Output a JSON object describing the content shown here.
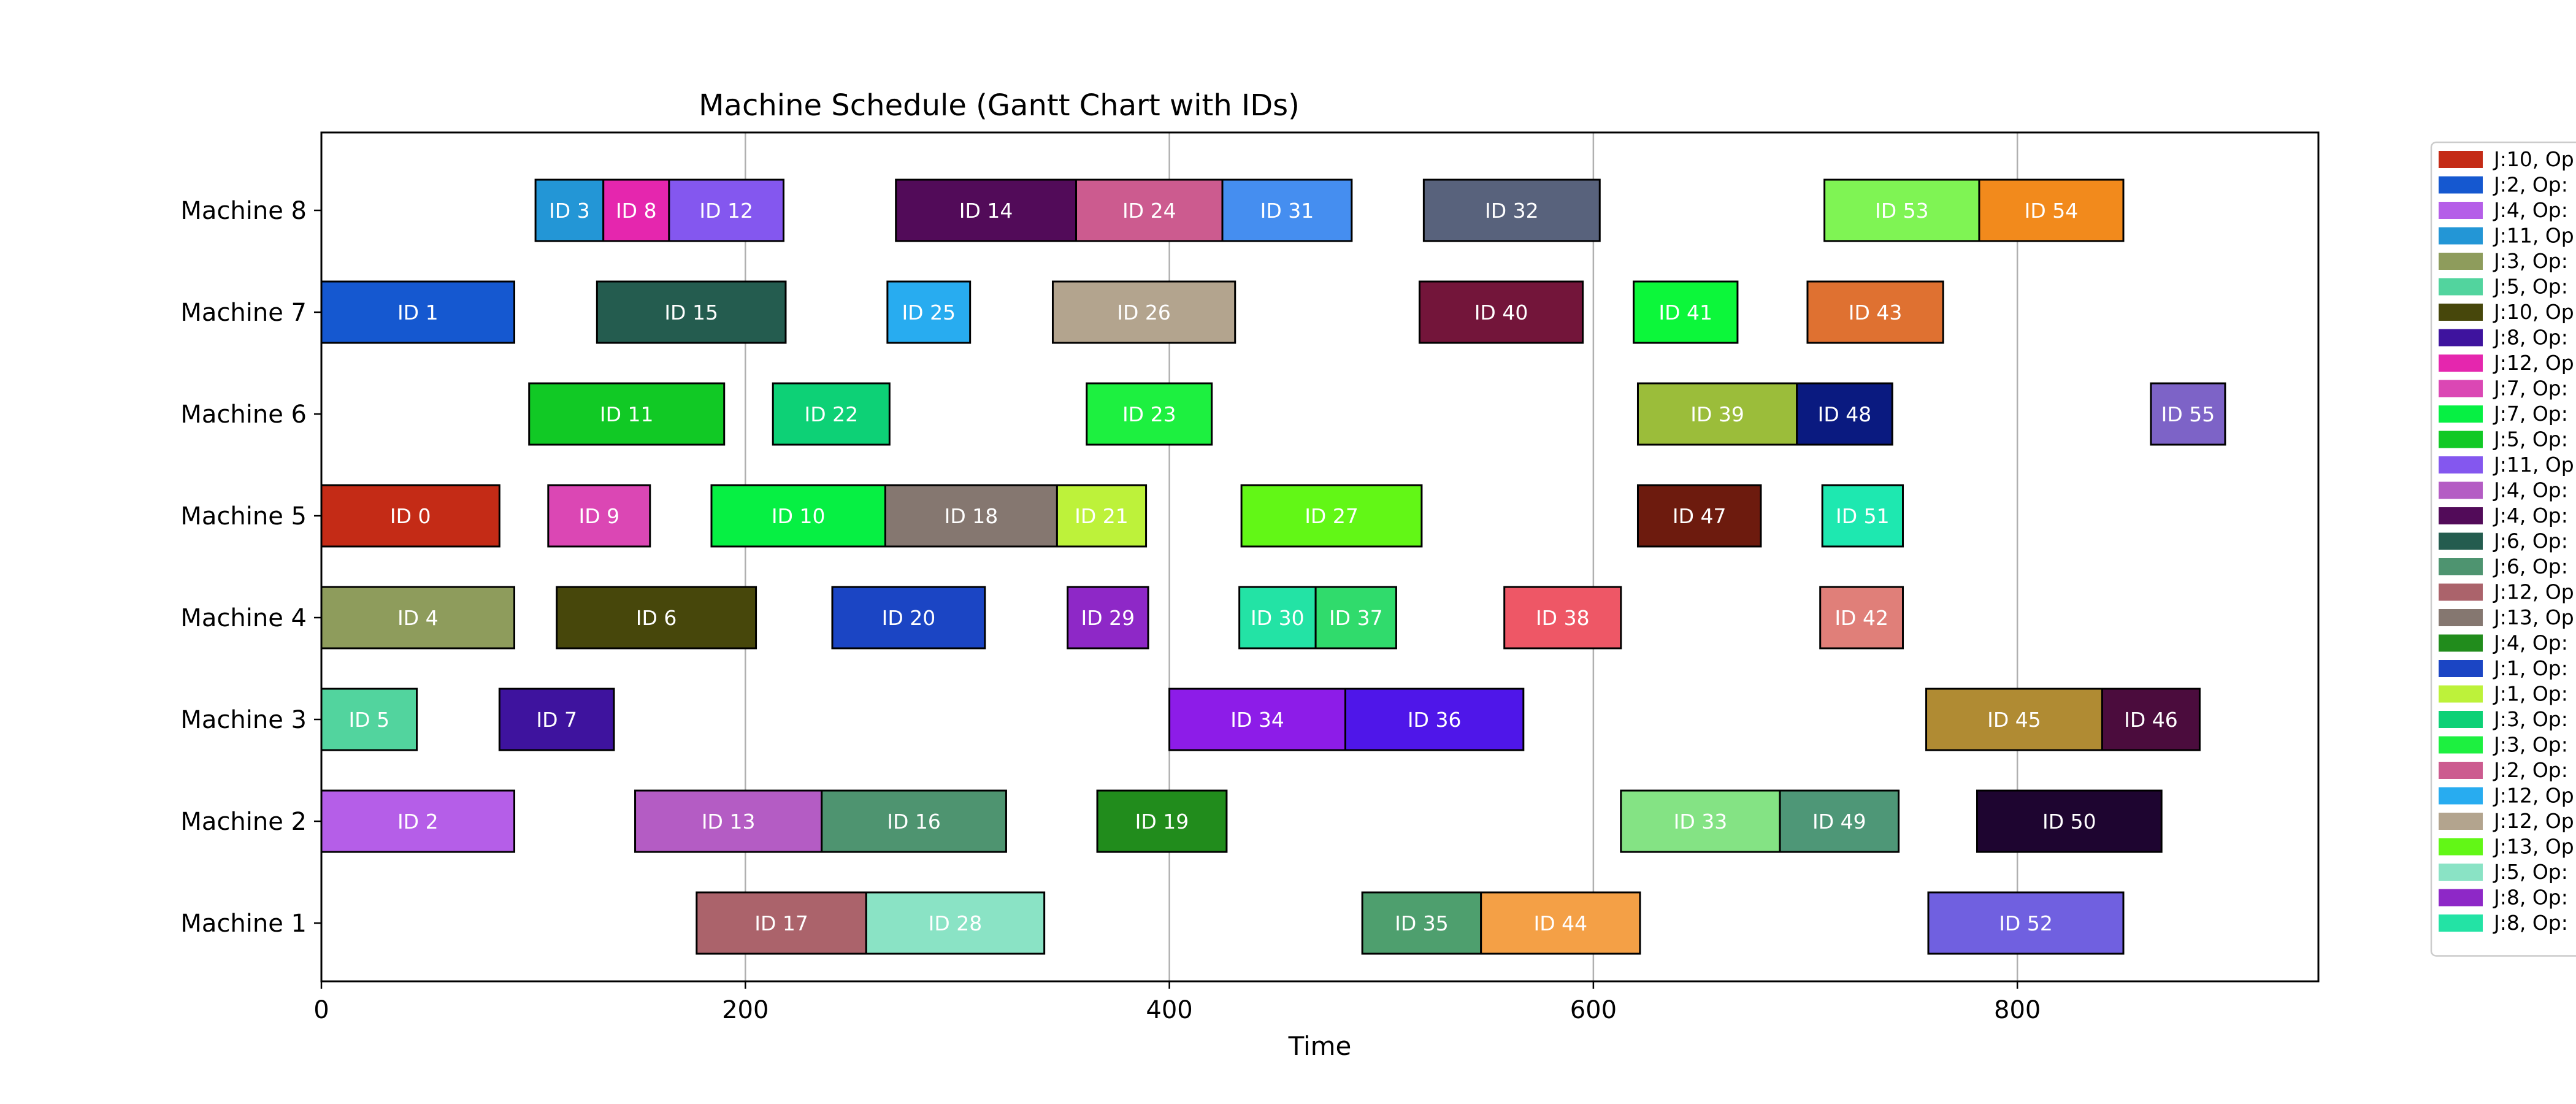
{
  "chart_data": {
    "type": "gantt",
    "title": "Machine Schedule (Gantt Chart with IDs)",
    "xlabel": "Time",
    "ylabel": "",
    "xlim": [
      0,
      942
    ],
    "xticks": [
      0,
      200,
      400,
      600,
      800
    ],
    "grid": "vertical",
    "legend_position": "right (clipped)",
    "machines": [
      "Machine 1",
      "Machine 2",
      "Machine 3",
      "Machine 4",
      "Machine 5",
      "Machine 6",
      "Machine 7",
      "Machine 8"
    ],
    "tasks": [
      {
        "id": "ID 0",
        "machine": "Machine 5",
        "start": 0,
        "end": 84,
        "color": "#c42b16"
      },
      {
        "id": "ID 1",
        "machine": "Machine 7",
        "start": 0,
        "end": 91,
        "color": "#1558d0"
      },
      {
        "id": "ID 2",
        "machine": "Machine 2",
        "start": 0,
        "end": 91,
        "color": "#b55ee8"
      },
      {
        "id": "ID 3",
        "machine": "Machine 8",
        "start": 101,
        "end": 133,
        "color": "#2396d6"
      },
      {
        "id": "ID 4",
        "machine": "Machine 4",
        "start": 0,
        "end": 91,
        "color": "#8e9c5c"
      },
      {
        "id": "ID 5",
        "machine": "Machine 3",
        "start": 0,
        "end": 45,
        "color": "#52d49e"
      },
      {
        "id": "ID 6",
        "machine": "Machine 4",
        "start": 111,
        "end": 205,
        "color": "#47470b"
      },
      {
        "id": "ID 7",
        "machine": "Machine 3",
        "start": 84,
        "end": 138,
        "color": "#3e139e"
      },
      {
        "id": "ID 8",
        "machine": "Machine 8",
        "start": 133,
        "end": 164,
        "color": "#e526ae"
      },
      {
        "id": "ID 9",
        "machine": "Machine 5",
        "start": 107,
        "end": 155,
        "color": "#db47b4"
      },
      {
        "id": "ID 10",
        "machine": "Machine 5",
        "start": 184,
        "end": 266,
        "color": "#06f043"
      },
      {
        "id": "ID 11",
        "machine": "Machine 6",
        "start": 98,
        "end": 190,
        "color": "#11c925"
      },
      {
        "id": "ID 12",
        "machine": "Machine 8",
        "start": 164,
        "end": 218,
        "color": "#8457ef"
      },
      {
        "id": "ID 13",
        "machine": "Machine 2",
        "start": 148,
        "end": 236,
        "color": "#b45cc4"
      },
      {
        "id": "ID 14",
        "machine": "Machine 8",
        "start": 271,
        "end": 356,
        "color": "#520b59"
      },
      {
        "id": "ID 15",
        "machine": "Machine 7",
        "start": 130,
        "end": 219,
        "color": "#245c4f"
      },
      {
        "id": "ID 16",
        "machine": "Machine 2",
        "start": 236,
        "end": 323,
        "color": "#4e9470"
      },
      {
        "id": "ID 17",
        "machine": "Machine 1",
        "start": 177,
        "end": 257,
        "color": "#ab636b"
      },
      {
        "id": "ID 18",
        "machine": "Machine 5",
        "start": 266,
        "end": 347,
        "color": "#857770"
      },
      {
        "id": "ID 19",
        "machine": "Machine 2",
        "start": 366,
        "end": 427,
        "color": "#218c1c"
      },
      {
        "id": "ID 20",
        "machine": "Machine 4",
        "start": 241,
        "end": 313,
        "color": "#1b45c4"
      },
      {
        "id": "ID 21",
        "machine": "Machine 5",
        "start": 347,
        "end": 389,
        "color": "#bdf23a"
      },
      {
        "id": "ID 22",
        "machine": "Machine 6",
        "start": 213,
        "end": 268,
        "color": "#0dd176"
      },
      {
        "id": "ID 23",
        "machine": "Machine 6",
        "start": 361,
        "end": 420,
        "color": "#1df040"
      },
      {
        "id": "ID 24",
        "machine": "Machine 8",
        "start": 356,
        "end": 425,
        "color": "#cc5b8f"
      },
      {
        "id": "ID 25",
        "machine": "Machine 7",
        "start": 267,
        "end": 306,
        "color": "#28acf0"
      },
      {
        "id": "ID 26",
        "machine": "Machine 7",
        "start": 345,
        "end": 431,
        "color": "#b3a48e"
      },
      {
        "id": "ID 27",
        "machine": "Machine 5",
        "start": 434,
        "end": 519,
        "color": "#62f716"
      },
      {
        "id": "ID 28",
        "machine": "Machine 1",
        "start": 257,
        "end": 341,
        "color": "#8ae3c5"
      },
      {
        "id": "ID 29",
        "machine": "Machine 4",
        "start": 352,
        "end": 390,
        "color": "#8e28c7"
      },
      {
        "id": "ID 30",
        "machine": "Machine 4",
        "start": 433,
        "end": 469,
        "color": "#23e3a5"
      },
      {
        "id": "ID 31",
        "machine": "Machine 8",
        "start": 425,
        "end": 486,
        "color": "#458ef0"
      },
      {
        "id": "ID 32",
        "machine": "Machine 8",
        "start": 520,
        "end": 603,
        "color": "#58627c"
      },
      {
        "id": "ID 33",
        "machine": "Machine 2",
        "start": 613,
        "end": 688,
        "color": "#84e384"
      },
      {
        "id": "ID 34",
        "machine": "Machine 3",
        "start": 400,
        "end": 483,
        "color": "#8d1ce8"
      },
      {
        "id": "ID 35",
        "machine": "Machine 1",
        "start": 491,
        "end": 547,
        "color": "#4e9f6e"
      },
      {
        "id": "ID 36",
        "machine": "Machine 3",
        "start": 483,
        "end": 567,
        "color": "#4f16e9"
      },
      {
        "id": "ID 37",
        "machine": "Machine 4",
        "start": 469,
        "end": 507,
        "color": "#30db6c"
      },
      {
        "id": "ID 38",
        "machine": "Machine 4",
        "start": 558,
        "end": 613,
        "color": "#ee5766"
      },
      {
        "id": "ID 39",
        "machine": "Machine 6",
        "start": 621,
        "end": 696,
        "color": "#9bbd3a"
      },
      {
        "id": "ID 40",
        "machine": "Machine 7",
        "start": 518,
        "end": 595,
        "color": "#73153a"
      },
      {
        "id": "ID 41",
        "machine": "Machine 7",
        "start": 619,
        "end": 668,
        "color": "#0cf73a"
      },
      {
        "id": "ID 42",
        "machine": "Machine 4",
        "start": 707,
        "end": 746,
        "color": "#e07f79"
      },
      {
        "id": "ID 43",
        "machine": "Machine 7",
        "start": 701,
        "end": 765,
        "color": "#df7131"
      },
      {
        "id": "ID 44",
        "machine": "Machine 1",
        "start": 547,
        "end": 622,
        "color": "#f4a046"
      },
      {
        "id": "ID 45",
        "machine": "Machine 3",
        "start": 757,
        "end": 840,
        "color": "#b08b33"
      },
      {
        "id": "ID 46",
        "machine": "Machine 3",
        "start": 840,
        "end": 886,
        "color": "#4b0c3d"
      },
      {
        "id": "ID 47",
        "machine": "Machine 5",
        "start": 621,
        "end": 679,
        "color": "#6d1b0e"
      },
      {
        "id": "ID 48",
        "machine": "Machine 6",
        "start": 696,
        "end": 741,
        "color": "#0a1a80"
      },
      {
        "id": "ID 49",
        "machine": "Machine 2",
        "start": 688,
        "end": 744,
        "color": "#4e9777"
      },
      {
        "id": "ID 50",
        "machine": "Machine 2",
        "start": 781,
        "end": 868,
        "color": "#1e0530"
      },
      {
        "id": "ID 51",
        "machine": "Machine 5",
        "start": 708,
        "end": 746,
        "color": "#1ee8b0"
      },
      {
        "id": "ID 52",
        "machine": "Machine 1",
        "start": 758,
        "end": 850,
        "color": "#7060e0"
      },
      {
        "id": "ID 53",
        "machine": "Machine 8",
        "start": 709,
        "end": 782,
        "color": "#7ff454"
      },
      {
        "id": "ID 54",
        "machine": "Machine 8",
        "start": 782,
        "end": 850,
        "color": "#f28a1c"
      },
      {
        "id": "ID 55",
        "machine": "Machine 6",
        "start": 863,
        "end": 898,
        "color": "#7d63c7"
      }
    ],
    "legend": [
      {
        "label": "J:10, Op",
        "color": "#c42b16"
      },
      {
        "label": "J:2, Op:",
        "color": "#1558d0"
      },
      {
        "label": "J:4, Op:",
        "color": "#b55ee8"
      },
      {
        "label": "J:11, Op",
        "color": "#2396d6"
      },
      {
        "label": "J:3, Op:",
        "color": "#8e9c5c"
      },
      {
        "label": "J:5, Op:",
        "color": "#52d49e"
      },
      {
        "label": "J:10, Op",
        "color": "#47470b"
      },
      {
        "label": "J:8, Op:",
        "color": "#3e139e"
      },
      {
        "label": "J:12, Op",
        "color": "#e526ae"
      },
      {
        "label": "J:7, Op:",
        "color": "#db47b4"
      },
      {
        "label": "J:7, Op:",
        "color": "#06f043"
      },
      {
        "label": "J:5, Op:",
        "color": "#11c925"
      },
      {
        "label": "J:11, Op",
        "color": "#8457ef"
      },
      {
        "label": "J:4, Op:",
        "color": "#b45cc4"
      },
      {
        "label": "J:4, Op:",
        "color": "#520b59"
      },
      {
        "label": "J:6, Op:",
        "color": "#245c4f"
      },
      {
        "label": "J:6, Op:",
        "color": "#4e9470"
      },
      {
        "label": "J:12, Op",
        "color": "#ab636b"
      },
      {
        "label": "J:13, Op",
        "color": "#857770"
      },
      {
        "label": "J:4, Op:",
        "color": "#218c1c"
      },
      {
        "label": "J:1, Op:",
        "color": "#1b45c4"
      },
      {
        "label": "J:1, Op:",
        "color": "#bdf23a"
      },
      {
        "label": "J:3, Op:",
        "color": "#0dd176"
      },
      {
        "label": "J:3, Op:",
        "color": "#1df040"
      },
      {
        "label": "J:2, Op:",
        "color": "#cc5b8f"
      },
      {
        "label": "J:12, Op",
        "color": "#28acf0"
      },
      {
        "label": "J:12, Op",
        "color": "#b3a48e"
      },
      {
        "label": "J:13, Op",
        "color": "#62f716"
      },
      {
        "label": "J:5, Op:",
        "color": "#8ae3c5"
      },
      {
        "label": "J:8, Op:",
        "color": "#8e28c7"
      },
      {
        "label": "J:8, Op:",
        "color": "#23e3a5"
      }
    ]
  }
}
